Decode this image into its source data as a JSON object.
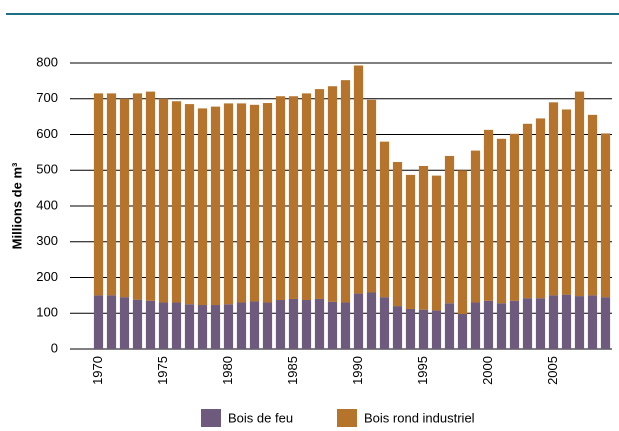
{
  "chart_data": {
    "type": "stacked_bar",
    "categories": [
      "1970",
      null,
      null,
      null,
      null,
      "1975",
      null,
      null,
      null,
      null,
      "1980",
      null,
      null,
      null,
      null,
      "1985",
      null,
      null,
      null,
      null,
      "1990",
      null,
      null,
      null,
      null,
      "1995",
      null,
      null,
      null,
      null,
      "2000",
      null,
      null,
      null,
      null,
      "2005",
      null,
      null,
      null,
      null
    ],
    "y_label": "Millions de m³",
    "ylim": [
      0,
      800
    ],
    "yticks": [
      0,
      100,
      200,
      300,
      400,
      500,
      600,
      700,
      800
    ],
    "grid": true,
    "series": [
      {
        "name": "Bois de feu",
        "color": "#6e5a7c",
        "values": [
          150,
          150,
          145,
          138,
          135,
          130,
          130,
          125,
          123,
          123,
          125,
          130,
          133,
          130,
          137,
          140,
          137,
          140,
          132,
          130,
          155,
          158,
          145,
          120,
          112,
          110,
          108,
          128,
          98,
          130,
          135,
          128,
          135,
          142,
          142,
          150,
          152,
          148,
          150,
          145
        ]
      },
      {
        "name": "Bois rond industriel",
        "color": "#b5732b",
        "values": [
          565,
          565,
          555,
          577,
          585,
          570,
          563,
          560,
          550,
          555,
          562,
          557,
          550,
          558,
          570,
          567,
          578,
          587,
          603,
          622,
          638,
          539,
          435,
          403,
          375,
          402,
          377,
          412,
          402,
          425,
          478,
          460,
          467,
          488,
          503,
          540,
          518,
          572,
          505,
          458
        ]
      }
    ]
  }
}
